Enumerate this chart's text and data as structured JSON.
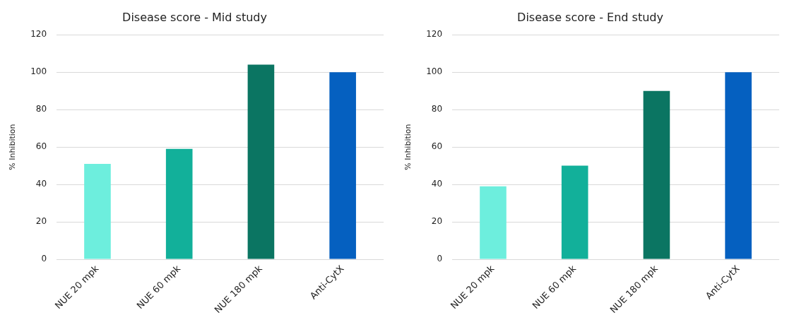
{
  "chart_data": [
    {
      "type": "bar",
      "title": "Disease score - Mid study",
      "ylabel": "% Inhibition",
      "categories": [
        "NUE 20 mpk",
        "NUE 60 mpk",
        "NUE 180 mpk",
        "Anti-CytX"
      ],
      "values": [
        51,
        59,
        104,
        100
      ],
      "colors": [
        "#6deedd",
        "#12b09a",
        "#0b7562",
        "#0560c0"
      ],
      "ylim": [
        0,
        120
      ],
      "yticks": [
        0,
        20,
        40,
        60,
        80,
        100,
        120
      ],
      "grid": "y"
    },
    {
      "type": "bar",
      "title": "Disease score - End study",
      "ylabel": "% Inhibition",
      "categories": [
        "NUE 20 mpk",
        "NUE 60 mpk",
        "NUE 180 mpk",
        "Anti-CytX"
      ],
      "values": [
        39,
        50,
        90,
        100
      ],
      "colors": [
        "#6deedd",
        "#12b09a",
        "#0b7562",
        "#0560c0"
      ],
      "ylim": [
        0,
        120
      ],
      "yticks": [
        0,
        20,
        40,
        60,
        80,
        100,
        120
      ],
      "grid": "y"
    }
  ]
}
